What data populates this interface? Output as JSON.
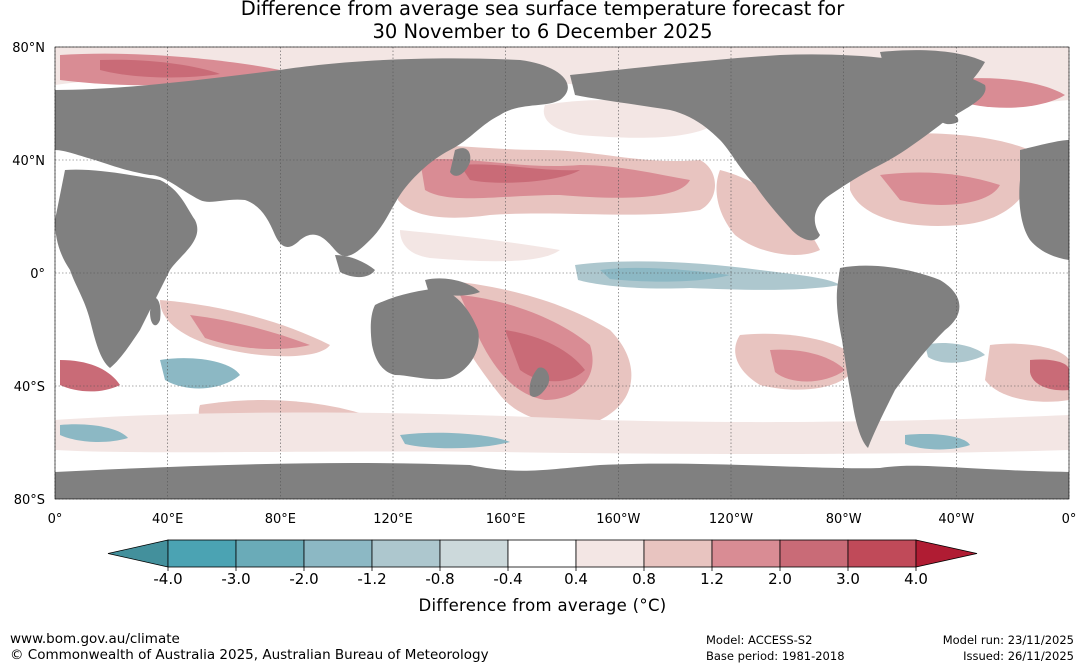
{
  "title": {
    "line1": "Difference from average sea surface temperature forecast for",
    "line2": "30 November to 6 December 2025"
  },
  "map": {
    "lat_labels": [
      "80°N",
      "40°N",
      "0°",
      "40°S",
      "80°S"
    ],
    "lon_labels": [
      "0°",
      "40°E",
      "80°E",
      "120°E",
      "160°E",
      "160°W",
      "120°W",
      "80°W",
      "40°W",
      "0°"
    ],
    "lat_values": [
      80,
      40,
      0,
      -40,
      -80
    ],
    "lon_values": [
      0,
      40,
      80,
      120,
      160,
      200,
      240,
      280,
      320,
      360
    ],
    "land_color": "#808080",
    "ocean_color": "#ffffff",
    "gridline_color": "#555555"
  },
  "colorbar": {
    "tick_labels": [
      "-4.0",
      "-3.0",
      "-2.0",
      "-1.2",
      "-0.8",
      "-0.4",
      "0.4",
      "0.8",
      "1.2",
      "2.0",
      "3.0",
      "4.0"
    ],
    "colors": [
      "#43909c",
      "#4ba3b3",
      "#6aabb8",
      "#8cb8c4",
      "#adc7ce",
      "#ccd9db",
      "#ffffff",
      "#f3e6e4",
      "#e8c4c0",
      "#d98c94",
      "#c96b77",
      "#c04a59",
      "#b01c33"
    ],
    "label": "Difference from average (°C)"
  },
  "footer": {
    "website": "www.bom.gov.au/climate",
    "copyright": "© Commonwealth of Australia 2025, Australian Bureau of Meteorology",
    "model": "Model: ACCESS-S2",
    "base_period": "Base period: 1981-2018",
    "model_run": "Model run: 23/11/2025",
    "issued": "Issued: 26/11/2025"
  }
}
